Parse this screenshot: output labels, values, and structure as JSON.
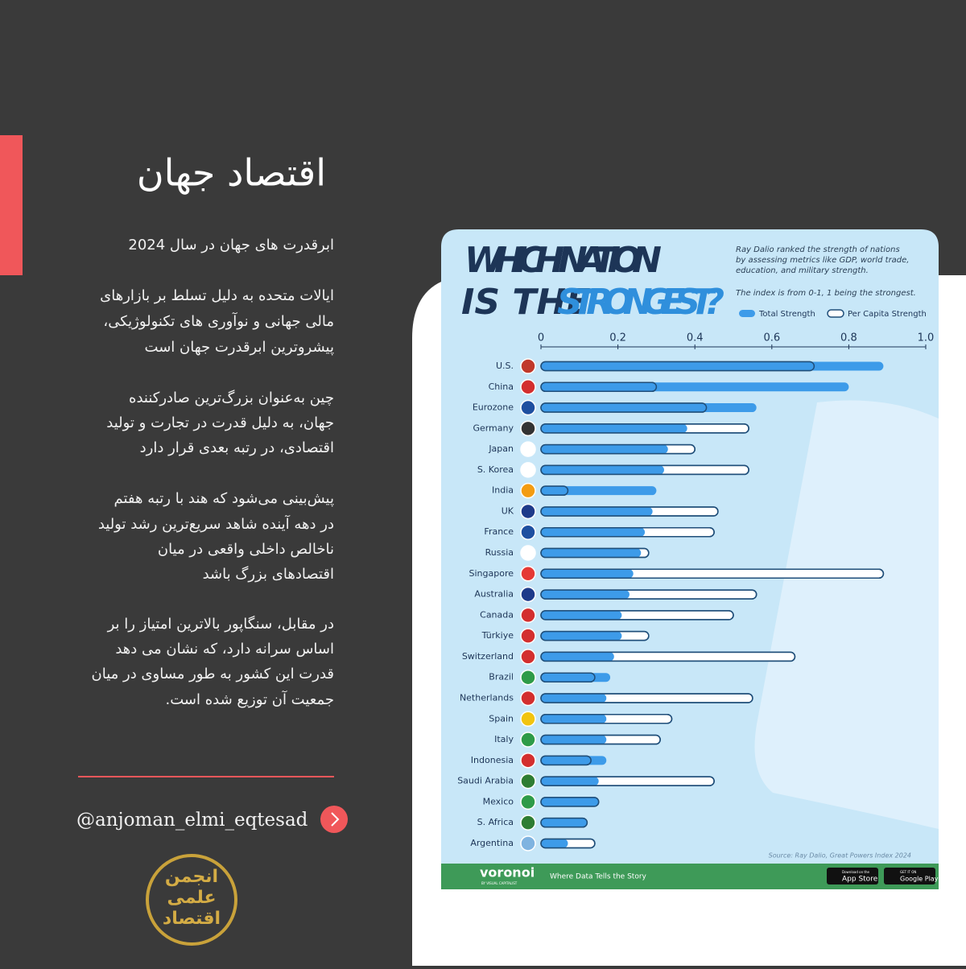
{
  "header": {
    "title": "اقتصاد جهان"
  },
  "paragraphs": [
    [
      "ابرقدرت های جهان در سال 2024"
    ],
    [
      "ایالات متحده به دلیل تسلط بر بازارهای",
      "مالی جهانی و نوآوری های تکنولوژیکی،",
      "پیشروترین ابرقدرت جهان است"
    ],
    [
      "چین به‌عنوان بزرگ‌ترین صادرکننده",
      "جهان، به دلیل قدرت در تجارت و تولید",
      "اقتصادی، در رتبه بعدی قرار دارد"
    ],
    [
      "پیش‌بینی می‌شود که هند با رتبه هفتم",
      "در دهه آینده شاهد سریع‌ترین رشد تولید",
      "ناخالص داخلی واقعی در میان",
      "اقتصادهای بزرگ باشد"
    ],
    [
      "در مقابل، سنگاپور بالاترین امتیاز را بر",
      "اساس سرانه دارد، که نشان می دهد",
      "قدرت این کشور به طور مساوی در میان",
      "جمعیت آن توزیع شده است."
    ]
  ],
  "handle": "@anjoman_elmi_eqtesad",
  "logo": [
    "انجمن",
    "علمی",
    "اقتصاد"
  ],
  "chart_data": {
    "type": "bar",
    "orientation": "horizontal",
    "title": [
      "WHICH NATION",
      "IS THE",
      "STRONGEST?"
    ],
    "description": [
      "Ray Dalio ranked the strength of nations",
      "by assessing metrics like GDP, world trade,",
      "education, and military strength."
    ],
    "note": "The index is from 0-1, 1 being the strongest.",
    "source": "Source: Ray Dalio, Great Powers Index 2024",
    "footer": {
      "brand": "voronoi",
      "brand_sub": "BY VISUAL CAPITALIST",
      "tagline": "Where Data Tells the Story",
      "app_store": [
        "Download on the",
        "App Store"
      ],
      "google_play": [
        "GET IT ON",
        "Google Play"
      ]
    },
    "categories": [
      "U.S.",
      "China",
      "Eurozone",
      "Germany",
      "Japan",
      "S. Korea",
      "India",
      "UK",
      "France",
      "Russia",
      "Singapore",
      "Australia",
      "Canada",
      "Türkiye",
      "Switzerland",
      "Brazil",
      "Netherlands",
      "Spain",
      "Italy",
      "Indonesia",
      "Saudi Arabia",
      "Mexico",
      "S. Africa",
      "Argentina"
    ],
    "series": [
      {
        "name": "Total Strength",
        "color": "#3d9be9",
        "values": [
          0.89,
          0.8,
          0.56,
          0.38,
          0.33,
          0.32,
          0.3,
          0.29,
          0.27,
          0.26,
          0.24,
          0.23,
          0.21,
          0.21,
          0.19,
          0.18,
          0.17,
          0.17,
          0.17,
          0.17,
          0.15,
          0.15,
          0.12,
          0.07
        ]
      },
      {
        "name": "Per Capita Strength",
        "color": "#1f4e79",
        "values": [
          0.71,
          0.3,
          0.43,
          0.54,
          0.4,
          0.54,
          0.07,
          0.46,
          0.45,
          0.28,
          0.89,
          0.56,
          0.5,
          0.28,
          0.66,
          0.14,
          0.55,
          0.34,
          0.31,
          0.13,
          0.45,
          0.15,
          0.12,
          0.14
        ]
      }
    ],
    "xlim": [
      0,
      1
    ],
    "xticks": [
      0,
      0.2,
      0.4,
      0.6,
      0.8,
      {
        "value": 1,
        "label": "1.0"
      }
    ]
  }
}
